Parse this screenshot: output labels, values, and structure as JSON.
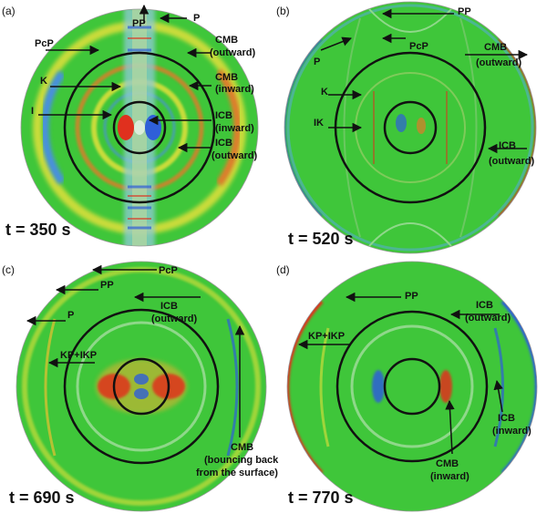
{
  "panels": [
    {
      "id": "a",
      "panel_label": "(a)",
      "time": "t = 350 s",
      "labels": {
        "pp": "PP",
        "p": "P",
        "pcp": "PcP",
        "cmb_out_1": "CMB",
        "cmb_out_2": "(outward)",
        "k": "K",
        "cmb_in_1": "CMB",
        "cmb_in_2": "(inward)",
        "i": "I",
        "icb_in_1": "ICB",
        "icb_in_2": "(inward)",
        "icb_out_1": "ICB",
        "icb_out_2": "(outward)"
      }
    },
    {
      "id": "b",
      "panel_label": "(b)",
      "time": "t = 520 s",
      "labels": {
        "pp": "PP",
        "pcp": "PcP",
        "p": "P",
        "cmb_out_1": "CMB",
        "cmb_out_2": "(outward)",
        "k": "K",
        "ik": "IK",
        "icb_out_1": "ICB",
        "icb_out_2": "(outward)"
      }
    },
    {
      "id": "c",
      "panel_label": "(c)",
      "time": "t = 690 s",
      "labels": {
        "pcp": "PcP",
        "pp": "PP",
        "icb_out_1": "ICB",
        "icb_out_2": "(outward)",
        "p": "P",
        "kp_ikp": "KP+IKP",
        "cmb_1": "CMB",
        "cmb_2": "(bouncing back",
        "cmb_3": "from the surface)"
      }
    },
    {
      "id": "d",
      "panel_label": "(d)",
      "time": "t = 770 s",
      "labels": {
        "pp": "PP",
        "icb_out_1": "ICB",
        "icb_out_2": "(outward)",
        "kp_ikp": "KP+IKP",
        "icb_in_1": "ICB",
        "icb_in_2": "(inward)",
        "cmb_in_1": "CMB",
        "cmb_in_2": "(inward)"
      }
    }
  ],
  "colors": {
    "background_field": "#3fc63a",
    "positive": "#e0301e",
    "negative": "#2f5fd8",
    "circle": "#111111"
  }
}
